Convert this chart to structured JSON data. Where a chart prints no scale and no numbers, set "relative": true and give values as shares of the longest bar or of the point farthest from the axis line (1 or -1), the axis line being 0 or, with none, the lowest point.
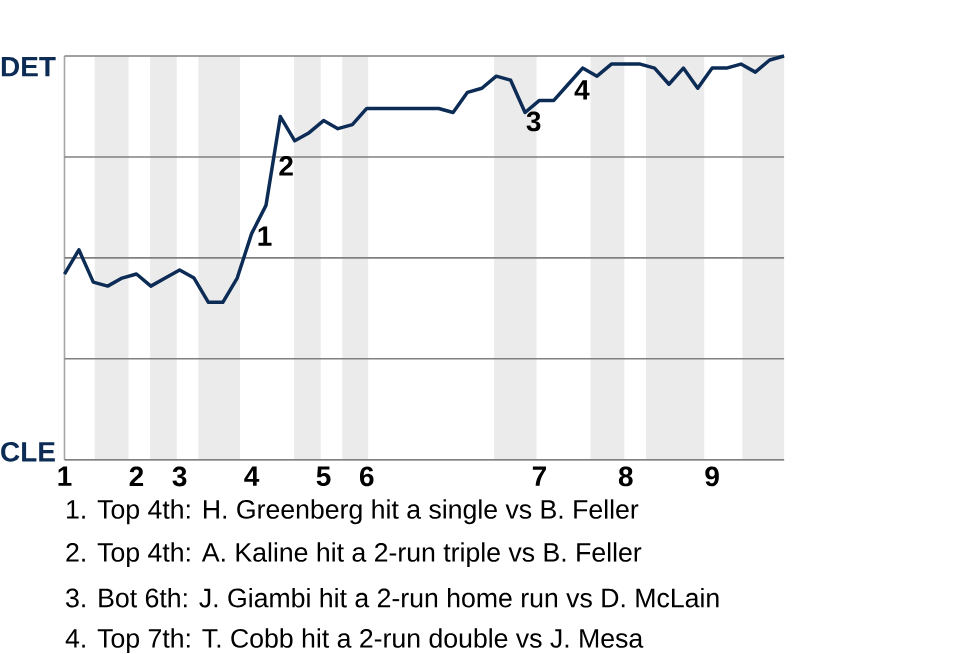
{
  "chart_data": {
    "type": "line",
    "color": "#0c2c56",
    "line_style": "solid",
    "marker": "none",
    "relative": true,
    "categories": [
      "1",
      null,
      null,
      null,
      null,
      "2",
      null,
      null,
      "3",
      null,
      null,
      null,
      null,
      "4",
      null,
      null,
      null,
      null,
      "5",
      null,
      null,
      "6",
      null,
      null,
      null,
      null,
      null,
      null,
      null,
      null,
      null,
      null,
      null,
      "7",
      null,
      null,
      null,
      null,
      null,
      "8",
      null,
      null,
      null,
      null,
      null,
      "9",
      null,
      null,
      null,
      null,
      null
    ],
    "values": [
      0.46,
      0.52,
      0.44,
      0.43,
      0.45,
      0.46,
      0.43,
      0.45,
      0.47,
      0.45,
      0.39,
      0.39,
      0.45,
      0.56,
      0.63,
      0.85,
      0.79,
      0.81,
      0.84,
      0.82,
      0.83,
      0.87,
      0.87,
      0.87,
      0.87,
      0.87,
      0.87,
      0.86,
      0.91,
      0.92,
      0.95,
      0.94,
      0.86,
      0.89,
      0.89,
      0.93,
      0.97,
      0.95,
      0.98,
      0.98,
      0.98,
      0.97,
      0.93,
      0.97,
      0.92,
      0.97,
      0.97,
      0.98,
      0.96,
      0.99,
      1.0
    ],
    "ref_lines": [
      {
        "axis": "y",
        "value": 0,
        "label": "CLE",
        "color": "#808080"
      },
      {
        "axis": "y",
        "value": 0.25,
        "color": "#808080"
      },
      {
        "axis": "y",
        "value": 0.5,
        "color": "#808080"
      },
      {
        "axis": "y",
        "value": 0.75,
        "color": "#808080"
      },
      {
        "axis": "y",
        "value": 1,
        "label": "DET",
        "color": "#808080"
      }
    ],
    "annotations": [
      "1",
      "2",
      "3",
      "4",
      "1. Top 4th: H. Greenberg hit a single vs B. Feller",
      "2. Top 4th: A. Kaline hit a 2-run triple vs B. Feller",
      "3. Bot 6th: J. Giambi hit a 2-run home run vs D. McLain",
      "4. Top 7th: T. Cobb hit a 2-run double vs J. Mesa"
    ]
  }
}
